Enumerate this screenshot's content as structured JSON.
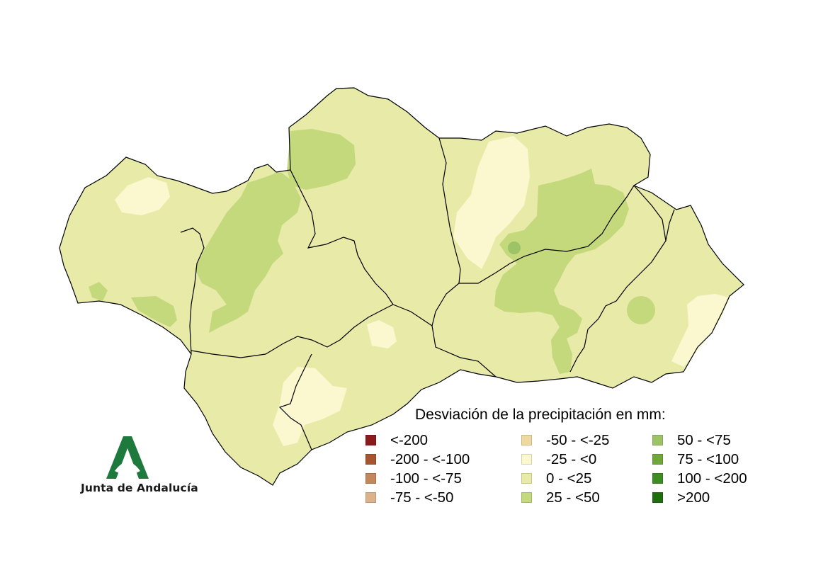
{
  "legend": {
    "title": "Desviación de la precipitación en mm:",
    "items": [
      {
        "label": "<-200",
        "color": "#8b1a1a"
      },
      {
        "label": "-200 - <-100",
        "color": "#a65530"
      },
      {
        "label": "-100 - <-75",
        "color": "#c4875c"
      },
      {
        "label": "-75 - <-50",
        "color": "#dcb28b"
      },
      {
        "label": "-50 - <-25",
        "color": "#eed9a0"
      },
      {
        "label": "-25 - <0",
        "color": "#fbf8cf"
      },
      {
        "label": "0 - <25",
        "color": "#e8eaa8"
      },
      {
        "label": "25 - <50",
        "color": "#c4d87c"
      },
      {
        "label": "50 - <75",
        "color": "#9cc466"
      },
      {
        "label": "75 - <100",
        "color": "#6ea83a"
      },
      {
        "label": "100 - <200",
        "color": "#3e8c22"
      },
      {
        "label": ">200",
        "color": "#1e6e10"
      }
    ]
  },
  "logo": {
    "text": "Junta de Andalucía",
    "color": "#1e7a3c"
  },
  "map": {
    "base_color": "#e8eaa8",
    "border_color": "#000000"
  }
}
